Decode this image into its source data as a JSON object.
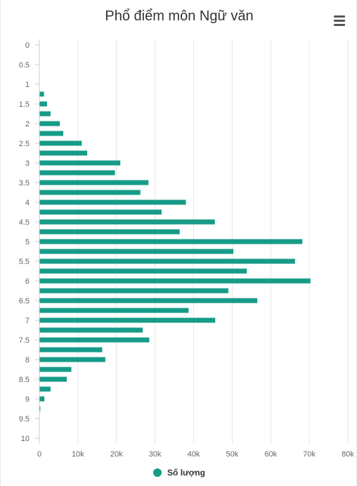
{
  "title": "Phổ điểm môn Ngữ văn",
  "menu_icon": "hamburger-menu-icon",
  "legend_label": "Số lượng",
  "colors": {
    "series": "#169b87",
    "grid": "#e6e6e6",
    "tick_text": "#666666",
    "title": "#333333"
  },
  "chart_data": {
    "type": "bar",
    "orientation": "horizontal",
    "title": "Phổ điểm môn Ngữ văn",
    "xlabel": "",
    "ylabel": "",
    "categories": [
      "0",
      "0.25",
      "0.5",
      "0.75",
      "1",
      "1.25",
      "1.5",
      "1.75",
      "2",
      "2.25",
      "2.5",
      "2.75",
      "3",
      "3.25",
      "3.5",
      "3.75",
      "4",
      "4.25",
      "4.5",
      "4.75",
      "5",
      "5.25",
      "5.5",
      "5.75",
      "6",
      "6.25",
      "6.5",
      "6.75",
      "7",
      "7.25",
      "7.5",
      "7.75",
      "8",
      "8.25",
      "8.5",
      "8.75",
      "9",
      "9.25",
      "9.5",
      "9.75",
      "10"
    ],
    "category_tick_labels": [
      "0",
      "0.5",
      "1",
      "1.5",
      "2",
      "2.5",
      "3",
      "3.5",
      "4",
      "4.5",
      "5",
      "5.5",
      "6",
      "6.5",
      "7",
      "7.5",
      "8",
      "8.5",
      "9",
      "9.5",
      "10"
    ],
    "series": [
      {
        "name": "Số lượng",
        "values": [
          0,
          0,
          0,
          0,
          0,
          1200,
          2000,
          2900,
          5300,
          6200,
          11000,
          12400,
          21000,
          19600,
          28300,
          26200,
          38000,
          31700,
          45500,
          36400,
          68200,
          50300,
          66300,
          53800,
          70300,
          49000,
          56500,
          38700,
          45600,
          26800,
          28500,
          16300,
          17100,
          8300,
          7100,
          2900,
          1300,
          250,
          0,
          0,
          0
        ]
      }
    ],
    "x_ticks": [
      "0",
      "10k",
      "20k",
      "30k",
      "40k",
      "50k",
      "60k",
      "70k",
      "80k"
    ],
    "xlim": [
      0,
      80000
    ],
    "grid": true,
    "legend": "bottom-center"
  }
}
